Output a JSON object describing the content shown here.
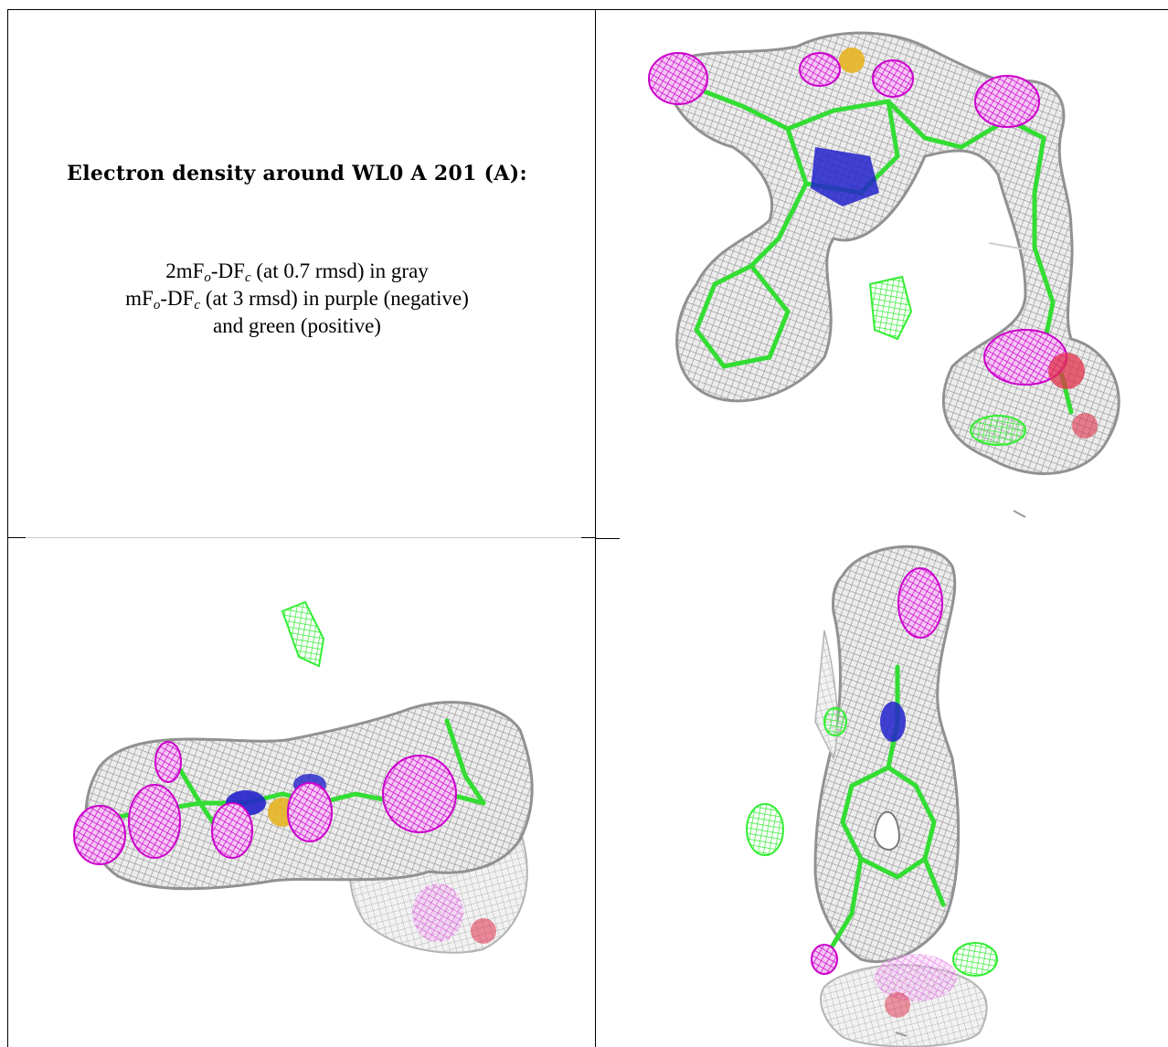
{
  "caption": {
    "title": "Electron density around WL0 A 201 (A):",
    "line1_prefix": "2mF",
    "line1_sub_o": "o",
    "line1_mid": "-DF",
    "line1_sub_c": "c",
    "line1_suffix": " (at 0.7 rmsd) in gray",
    "line2_prefix": "mF",
    "line2_sub_o": "o",
    "line2_mid": "-DF",
    "line2_sub_c": "c",
    "line2_suffix": " (at 3 rmsd) in purple (negative)",
    "line3": "and green (positive)"
  },
  "legend_colors": {
    "map_2fofc": "#9a9a9a",
    "negative": "#cc00cc",
    "positive": "#33ee33",
    "carbon": "#33dd33",
    "nitrogen": "#2222cc",
    "sulfur": "#e6b422",
    "oxygen": "#e0304a"
  },
  "views": [
    {
      "id": "view-top-right"
    },
    {
      "id": "view-bottom-left"
    },
    {
      "id": "view-bottom-right"
    }
  ]
}
